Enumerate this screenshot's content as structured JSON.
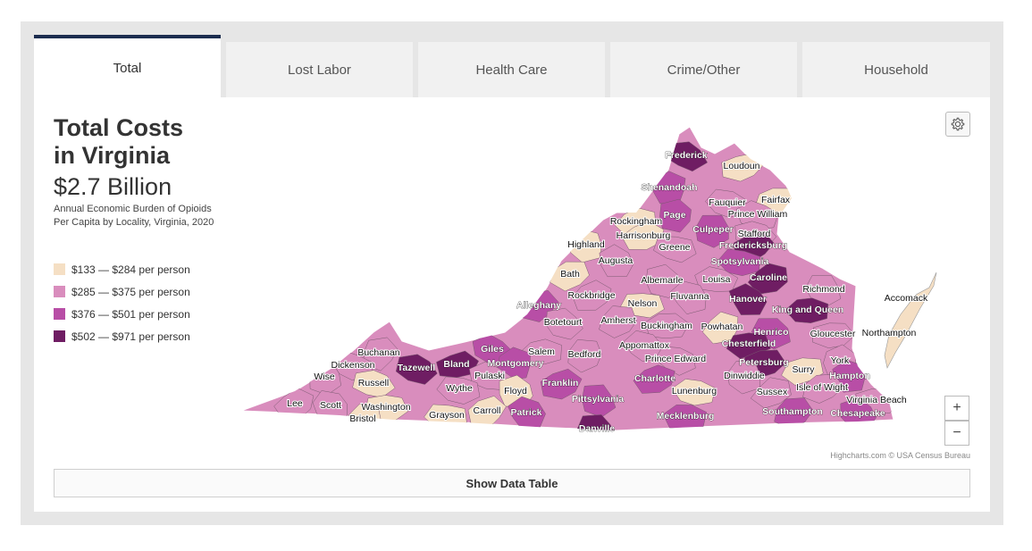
{
  "tabs": [
    {
      "label": "Total",
      "active": true
    },
    {
      "label": "Lost Labor",
      "active": false
    },
    {
      "label": "Health Care",
      "active": false
    },
    {
      "label": "Crime/Other",
      "active": false
    },
    {
      "label": "Household",
      "active": false
    }
  ],
  "header": {
    "title_line1": "Total Costs",
    "title_line2": "in Virginia",
    "amount": "$2.7 Billion",
    "subtitle_line1": "Annual Economic Burden of Opioids",
    "subtitle_line2": "Per Capita by Locality, Virginia, 2020"
  },
  "legend": [
    {
      "label": "$133 — $284 per person",
      "color": "#f5dfc4"
    },
    {
      "label": "$285 — $375 per person",
      "color": "#d98dbd"
    },
    {
      "label": "$376 — $501 per person",
      "color": "#b84ea6"
    },
    {
      "label": "$502 — $971 per person",
      "color": "#6f1d63"
    }
  ],
  "map": {
    "credits": "Highcharts.com © USA Census Bureau",
    "zoom_in": "+",
    "zoom_out": "−",
    "localities": [
      {
        "name": "Frederick",
        "class": 3
      },
      {
        "name": "Loudoun",
        "class": 0
      },
      {
        "name": "Shenandoah",
        "class": 2
      },
      {
        "name": "Fauquier",
        "class": 1
      },
      {
        "name": "Fairfax",
        "class": 0
      },
      {
        "name": "Page",
        "class": 2
      },
      {
        "name": "Prince William",
        "class": 1
      },
      {
        "name": "Rockingham",
        "class": 0
      },
      {
        "name": "Culpeper",
        "class": 2
      },
      {
        "name": "Stafford",
        "class": 1
      },
      {
        "name": "Harrisonburg",
        "class": 0
      },
      {
        "name": "Highland",
        "class": 0
      },
      {
        "name": "Greene",
        "class": 1
      },
      {
        "name": "Fredericksburg",
        "class": 3
      },
      {
        "name": "Augusta",
        "class": 1
      },
      {
        "name": "Spotsylvania",
        "class": 2
      },
      {
        "name": "Bath",
        "class": 0
      },
      {
        "name": "Albemarle",
        "class": 1
      },
      {
        "name": "Louisa",
        "class": 1
      },
      {
        "name": "Caroline",
        "class": 3
      },
      {
        "name": "Richmond",
        "class": 1
      },
      {
        "name": "Accomack",
        "class": 0
      },
      {
        "name": "Rockbridge",
        "class": 1
      },
      {
        "name": "Fluvanna",
        "class": 1
      },
      {
        "name": "Nelson",
        "class": 0
      },
      {
        "name": "Alleghany",
        "class": 2
      },
      {
        "name": "Hanover",
        "class": 3
      },
      {
        "name": "King and Queen",
        "class": 3
      },
      {
        "name": "Amherst",
        "class": 1
      },
      {
        "name": "Botetourt",
        "class": 1
      },
      {
        "name": "Buckingham",
        "class": 1
      },
      {
        "name": "Powhatan",
        "class": 0
      },
      {
        "name": "Henrico",
        "class": 2
      },
      {
        "name": "Gloucester",
        "class": 1
      },
      {
        "name": "Northampton",
        "class": 0
      },
      {
        "name": "Appomattox",
        "class": 1
      },
      {
        "name": "Chesterfield",
        "class": 3
      },
      {
        "name": "Buchanan",
        "class": 1
      },
      {
        "name": "Giles",
        "class": 2
      },
      {
        "name": "Salem",
        "class": 1
      },
      {
        "name": "Bedford",
        "class": 1
      },
      {
        "name": "Tazewell",
        "class": 3
      },
      {
        "name": "Bland",
        "class": 3
      },
      {
        "name": "Montgomery",
        "class": 2
      },
      {
        "name": "Prince Edward",
        "class": 1
      },
      {
        "name": "Petersburg",
        "class": 3
      },
      {
        "name": "York",
        "class": 1
      },
      {
        "name": "Dickenson",
        "class": 1
      },
      {
        "name": "Surry",
        "class": 0
      },
      {
        "name": "Wise",
        "class": 1
      },
      {
        "name": "Pulaski",
        "class": 1
      },
      {
        "name": "Charlotte",
        "class": 2
      },
      {
        "name": "Dinwiddie",
        "class": 1
      },
      {
        "name": "Russell",
        "class": 0
      },
      {
        "name": "Franklin",
        "class": 2
      },
      {
        "name": "Hampton",
        "class": 2
      },
      {
        "name": "Wythe",
        "class": 1
      },
      {
        "name": "Isle of Wight",
        "class": 1
      },
      {
        "name": "Floyd",
        "class": 0
      },
      {
        "name": "Lunenburg",
        "class": 0
      },
      {
        "name": "Sussex",
        "class": 1
      },
      {
        "name": "Pittsylvania",
        "class": 2
      },
      {
        "name": "Virginia Beach",
        "class": 1
      },
      {
        "name": "Lee",
        "class": 1
      },
      {
        "name": "Scott",
        "class": 1
      },
      {
        "name": "Washington",
        "class": 0
      },
      {
        "name": "Carroll",
        "class": 0
      },
      {
        "name": "Patrick",
        "class": 2
      },
      {
        "name": "Grayson",
        "class": 0
      },
      {
        "name": "Southampton",
        "class": 2
      },
      {
        "name": "Chesapeake",
        "class": 2
      },
      {
        "name": "Mecklenburg",
        "class": 2
      },
      {
        "name": "Bristol",
        "class": 0
      },
      {
        "name": "Danville",
        "class": 3
      }
    ]
  },
  "show_table_label": "Show Data Table"
}
